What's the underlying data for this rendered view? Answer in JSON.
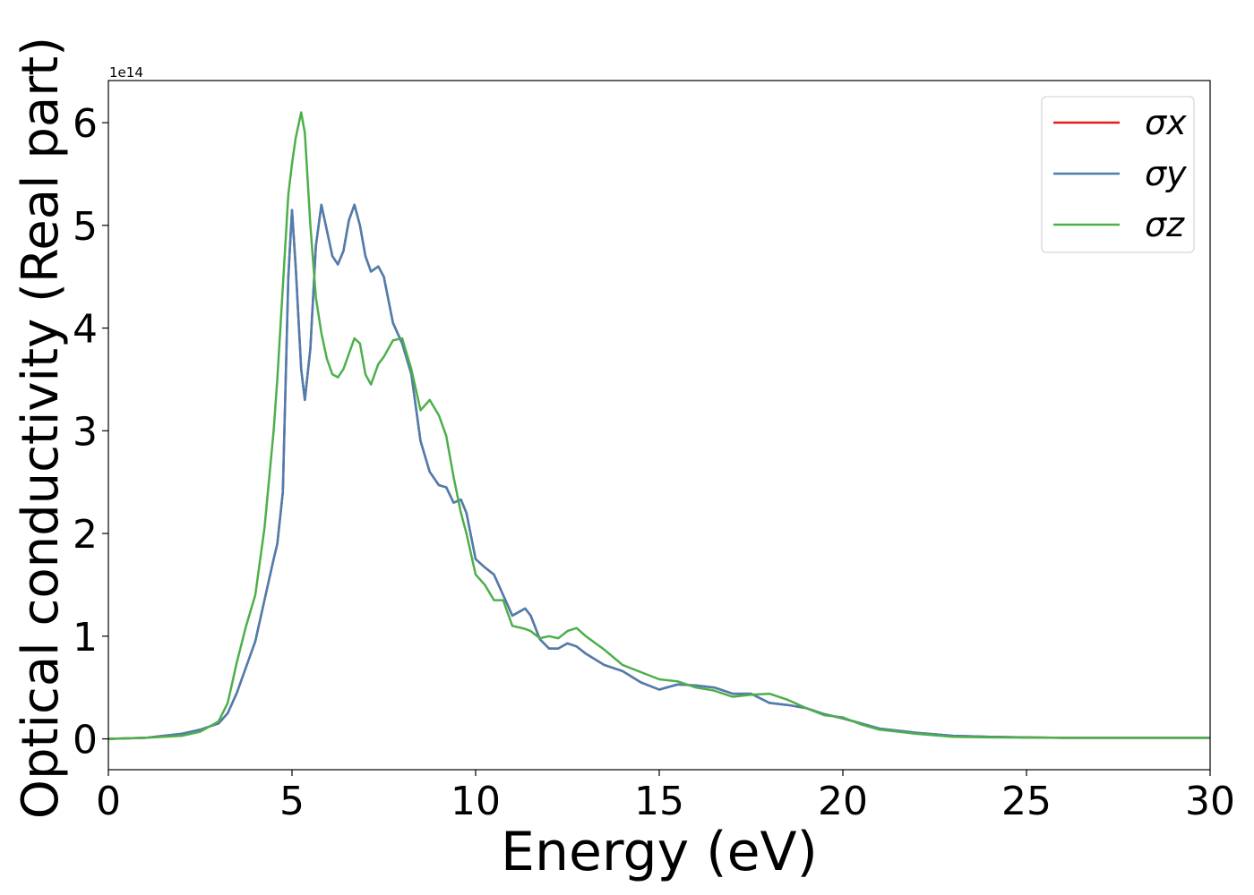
{
  "chart_data": {
    "type": "line",
    "xlabel": "Energy (eV)",
    "ylabel": "Optical conductivity (Real part)",
    "y_offset_label": "1e14",
    "xlim": [
      0,
      30
    ],
    "ylim": [
      -0.3,
      6.41
    ],
    "xticks": [
      0,
      5,
      10,
      15,
      20,
      25,
      30
    ],
    "yticks": [
      0,
      1,
      2,
      3,
      4,
      5,
      6
    ],
    "grid": false,
    "legend": "upper right",
    "x": [
      0,
      1,
      1.5,
      2,
      2.5,
      3,
      3.25,
      3.5,
      3.75,
      4,
      4.25,
      4.5,
      4.6,
      4.75,
      4.9,
      5.0,
      5.1,
      5.25,
      5.35,
      5.5,
      5.65,
      5.8,
      5.95,
      6.1,
      6.25,
      6.4,
      6.55,
      6.7,
      6.85,
      7.0,
      7.15,
      7.35,
      7.5,
      7.75,
      8.0,
      8.25,
      8.5,
      8.75,
      9.0,
      9.2,
      9.4,
      9.6,
      9.75,
      10.0,
      10.25,
      10.5,
      10.75,
      11.0,
      11.25,
      11.35,
      11.5,
      11.75,
      12.0,
      12.25,
      12.5,
      12.75,
      13.0,
      13.5,
      14.0,
      14.5,
      15.0,
      15.5,
      16.0,
      16.5,
      17.0,
      17.5,
      18.0,
      18.5,
      19.0,
      19.5,
      20.0,
      20.5,
      21.0,
      22.0,
      23.0,
      24.0,
      26,
      30
    ],
    "series": [
      {
        "name": "σx",
        "color": "#e41a1c",
        "values": [
          0,
          0.01,
          0.03,
          0.05,
          0.09,
          0.15,
          0.25,
          0.45,
          0.7,
          0.95,
          1.35,
          1.75,
          1.9,
          2.4,
          4.5,
          5.15,
          4.6,
          3.6,
          3.3,
          3.8,
          4.8,
          5.2,
          4.95,
          4.7,
          4.62,
          4.75,
          5.05,
          5.2,
          5.0,
          4.7,
          4.55,
          4.6,
          4.5,
          4.05,
          3.85,
          3.55,
          2.9,
          2.6,
          2.47,
          2.45,
          2.3,
          2.33,
          2.2,
          1.75,
          1.67,
          1.6,
          1.4,
          1.2,
          1.25,
          1.27,
          1.2,
          0.97,
          0.88,
          0.88,
          0.93,
          0.9,
          0.83,
          0.72,
          0.66,
          0.55,
          0.48,
          0.53,
          0.52,
          0.5,
          0.44,
          0.44,
          0.35,
          0.33,
          0.3,
          0.24,
          0.2,
          0.15,
          0.1,
          0.06,
          0.03,
          0.02,
          0.01,
          0.01
        ]
      },
      {
        "name": "σy",
        "color": "#4a7fb0",
        "values": [
          0,
          0.01,
          0.03,
          0.05,
          0.09,
          0.15,
          0.25,
          0.45,
          0.7,
          0.95,
          1.35,
          1.75,
          1.9,
          2.4,
          4.5,
          5.15,
          4.6,
          3.6,
          3.3,
          3.8,
          4.8,
          5.2,
          4.95,
          4.7,
          4.62,
          4.75,
          5.05,
          5.2,
          5.0,
          4.7,
          4.55,
          4.6,
          4.5,
          4.05,
          3.85,
          3.55,
          2.9,
          2.6,
          2.47,
          2.45,
          2.3,
          2.33,
          2.2,
          1.75,
          1.67,
          1.6,
          1.4,
          1.2,
          1.25,
          1.27,
          1.2,
          0.97,
          0.88,
          0.88,
          0.93,
          0.9,
          0.83,
          0.72,
          0.66,
          0.55,
          0.48,
          0.53,
          0.52,
          0.5,
          0.44,
          0.44,
          0.35,
          0.33,
          0.3,
          0.24,
          0.2,
          0.15,
          0.1,
          0.06,
          0.03,
          0.02,
          0.01,
          0.01
        ]
      },
      {
        "name": "σz",
        "color": "#4daf4a",
        "values": [
          0,
          0.01,
          0.02,
          0.03,
          0.07,
          0.17,
          0.35,
          0.75,
          1.1,
          1.4,
          2.05,
          3.0,
          3.5,
          4.4,
          5.3,
          5.6,
          5.85,
          6.1,
          5.9,
          5.0,
          4.3,
          3.95,
          3.7,
          3.55,
          3.52,
          3.6,
          3.75,
          3.9,
          3.85,
          3.55,
          3.45,
          3.65,
          3.72,
          3.88,
          3.9,
          3.6,
          3.2,
          3.3,
          3.15,
          2.95,
          2.55,
          2.2,
          2.0,
          1.6,
          1.5,
          1.35,
          1.35,
          1.1,
          1.08,
          1.07,
          1.05,
          0.98,
          1.0,
          0.98,
          1.05,
          1.08,
          1.0,
          0.87,
          0.72,
          0.65,
          0.58,
          0.56,
          0.5,
          0.47,
          0.41,
          0.43,
          0.44,
          0.38,
          0.3,
          0.23,
          0.21,
          0.14,
          0.09,
          0.05,
          0.02,
          0.015,
          0.01,
          0.01
        ]
      }
    ]
  }
}
